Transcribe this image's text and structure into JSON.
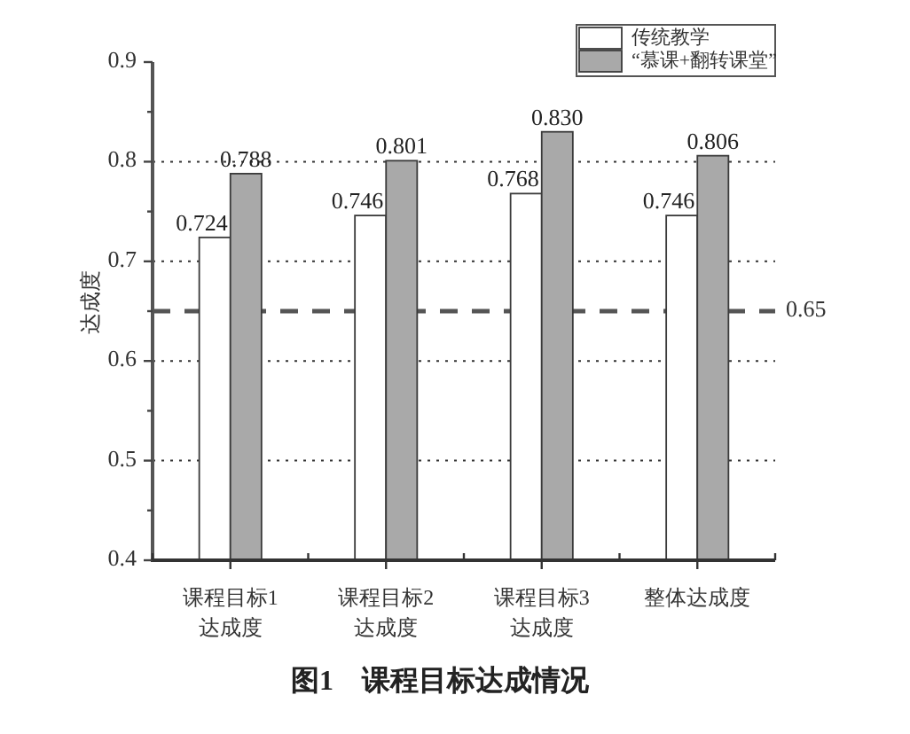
{
  "chart_data": {
    "type": "bar",
    "title": "图1　课程目标达成情况",
    "ylabel": "达成度",
    "categories": [
      "课程目标1\n达成度",
      "课程目标2\n达成度",
      "课程目标3\n达成度",
      "整体达成度"
    ],
    "series": [
      {
        "name": "传统教学",
        "color": "#ffffff",
        "values": [
          0.724,
          0.746,
          0.768,
          0.746
        ],
        "value_labels": [
          "0.724",
          "0.746",
          "0.768",
          "0.746"
        ]
      },
      {
        "name": "“慕课+翻转课堂”",
        "color": "#a9a9a9",
        "values": [
          0.788,
          0.801,
          0.83,
          0.806
        ],
        "value_labels": [
          "0.788",
          "0.801",
          "0.830",
          "0.806"
        ]
      }
    ],
    "ylim": [
      0.4,
      0.9
    ],
    "yticks": [
      0.4,
      {
        "value": 0.45,
        "label": null
      },
      0.5,
      {
        "value": 0.55,
        "label": null
      },
      0.6,
      {
        "value": 0.65,
        "label": null
      },
      0.7,
      {
        "value": 0.75,
        "label": null
      },
      0.8,
      {
        "value": 0.85,
        "label": null
      },
      0.9
    ],
    "grid": "y",
    "legend": "top right",
    "ref_lines": [
      {
        "axis": "y",
        "value": 0.65,
        "label": "0.65",
        "line_style": "dashed",
        "color": "#555555"
      }
    ]
  }
}
